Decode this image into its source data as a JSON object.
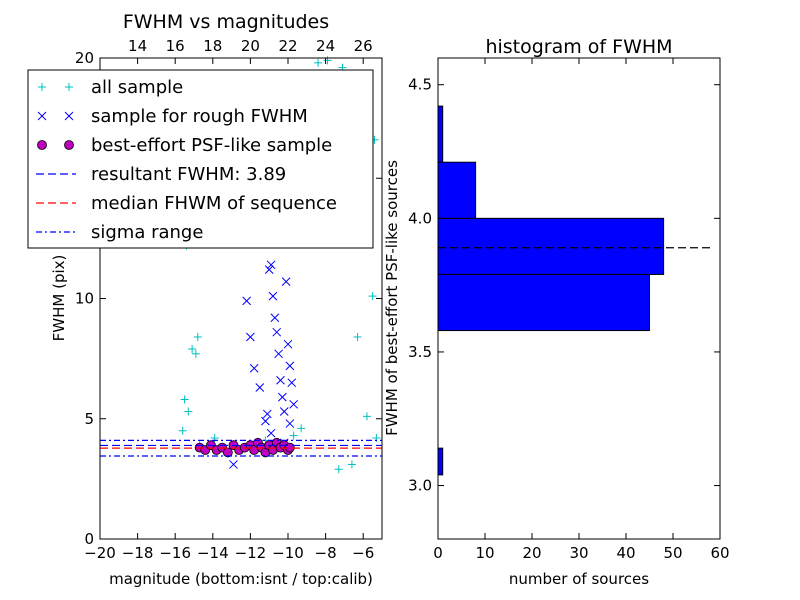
{
  "chart_data": [
    {
      "type": "scatter",
      "title": "FWHM vs magnitudes",
      "xlabel": "magnitude (bottom:isnt / top:calib)",
      "ylabel": "FWHM (pix)",
      "xlim": [
        -20,
        -5
      ],
      "ylim": [
        0,
        20
      ],
      "x_ticks": [
        -20,
        -18,
        -16,
        -14,
        -12,
        -10,
        -8,
        -6
      ],
      "x_tick_labels": [
        "−20",
        "−18",
        "−16",
        "−14",
        "−12",
        "−10",
        "−8",
        "−6"
      ],
      "y_ticks": [
        0,
        5,
        10,
        15,
        20
      ],
      "y_tick_labels": [
        "0",
        "5",
        "10",
        "15",
        "20"
      ],
      "top_axis": {
        "offset": 32,
        "ticks": [
          14,
          16,
          18,
          20,
          22,
          24,
          26
        ],
        "tick_labels": [
          "14",
          "16",
          "18",
          "20",
          "22",
          "24",
          "26"
        ]
      },
      "legend": {
        "placement": "upper-left",
        "entries": [
          {
            "label": "all sample",
            "marker": "+",
            "color": "#00bfbf"
          },
          {
            "label": "sample for rough FWHM",
            "marker": "x",
            "color": "#0000ff"
          },
          {
            "label": "best-effort PSF-like sample",
            "marker": "o",
            "color": "#bf00bf"
          },
          {
            "label": "resultant FWHM: 3.89",
            "line": "dashed",
            "color": "#0000ff"
          },
          {
            "label": "median FHWM of sequence",
            "line": "dashed",
            "color": "#ff0000"
          },
          {
            "label": "sigma range",
            "line": "dashdot",
            "color": "#0000ff"
          }
        ]
      },
      "series": [
        {
          "name": "all sample",
          "color": "#00bfbf",
          "points": [
            [
              -15.4,
              12.2
            ],
            [
              -15.5,
              5.8
            ],
            [
              -15.3,
              5.3
            ],
            [
              -15.1,
              7.9
            ],
            [
              -14.9,
              7.7
            ],
            [
              -14.8,
              8.4
            ],
            [
              -15.6,
              4.5
            ],
            [
              -14.7,
              3.9
            ],
            [
              -13.9,
              4.2
            ],
            [
              -12.5,
              3.7
            ],
            [
              -11.2,
              4.1
            ],
            [
              -10.5,
              3.8
            ],
            [
              -9.7,
              4.3
            ],
            [
              -9.3,
              4.6
            ],
            [
              -8.4,
              19.8
            ],
            [
              -7.9,
              19.9
            ],
            [
              -7.1,
              19.6
            ],
            [
              -5.4,
              16.6
            ],
            [
              -5.5,
              10.1
            ],
            [
              -6.1,
              15.8
            ],
            [
              -9.6,
              14.6
            ],
            [
              -9.2,
              13.4
            ],
            [
              -6.3,
              8.4
            ],
            [
              -5.8,
              5.1
            ],
            [
              -5.3,
              4.2
            ],
            [
              -6.6,
              3.1
            ],
            [
              -7.3,
              2.9
            ]
          ]
        },
        {
          "name": "sample for rough FWHM",
          "color": "#0000ff",
          "points": [
            [
              -12.2,
              9.9
            ],
            [
              -12.0,
              8.4
            ],
            [
              -11.8,
              7.1
            ],
            [
              -11.5,
              6.3
            ],
            [
              -11.2,
              4.9
            ],
            [
              -11.0,
              11.2
            ],
            [
              -10.9,
              11.4
            ],
            [
              -10.8,
              10.1
            ],
            [
              -10.7,
              9.2
            ],
            [
              -10.6,
              8.6
            ],
            [
              -10.5,
              7.7
            ],
            [
              -10.4,
              6.6
            ],
            [
              -10.3,
              5.9
            ],
            [
              -10.2,
              5.3
            ],
            [
              -10.1,
              10.7
            ],
            [
              -10.0,
              8.1
            ],
            [
              -9.9,
              7.2
            ],
            [
              -9.8,
              6.5
            ],
            [
              -9.7,
              5.6
            ],
            [
              -11.1,
              5.2
            ],
            [
              -12.9,
              3.1
            ],
            [
              -10.9,
              4.4
            ],
            [
              -10.2,
              4.0
            ],
            [
              -9.9,
              4.8
            ]
          ]
        },
        {
          "name": "best-effort PSF-like sample",
          "color": "#bf00bf",
          "points": [
            [
              -14.7,
              3.8
            ],
            [
              -14.4,
              3.7
            ],
            [
              -14.1,
              3.9
            ],
            [
              -13.8,
              3.7
            ],
            [
              -13.5,
              3.8
            ],
            [
              -13.2,
              3.6
            ],
            [
              -12.9,
              3.9
            ],
            [
              -12.6,
              3.7
            ],
            [
              -12.3,
              3.8
            ],
            [
              -12.0,
              3.9
            ],
            [
              -11.8,
              3.7
            ],
            [
              -11.6,
              4.0
            ],
            [
              -11.4,
              3.8
            ],
            [
              -11.2,
              3.6
            ],
            [
              -11.0,
              3.9
            ],
            [
              -10.8,
              3.7
            ],
            [
              -10.6,
              4.0
            ],
            [
              -10.4,
              3.8
            ],
            [
              -10.2,
              3.9
            ],
            [
              -10.0,
              3.7
            ],
            [
              -9.9,
              3.8
            ]
          ]
        }
      ],
      "hlines": [
        {
          "name": "resultant FWHM: 3.89",
          "y": 3.89,
          "style": "dashed",
          "color": "#0000ff"
        },
        {
          "name": "median FHWM of sequence",
          "y": 3.78,
          "style": "dashed",
          "color": "#ff0000"
        },
        {
          "name": "sigma range",
          "y": 4.1,
          "style": "dashdot",
          "color": "#0000ff"
        },
        {
          "name": "sigma range",
          "y": 3.45,
          "style": "dashdot",
          "color": "#0000ff"
        }
      ]
    },
    {
      "type": "bar",
      "orientation": "horizontal",
      "title": "histogram of FWHM",
      "xlabel": "number of sources",
      "ylabel": "FWHM of best-effort PSF-like sources",
      "xlim": [
        0,
        60
      ],
      "ylim": [
        2.8,
        4.6
      ],
      "x_ticks": [
        0,
        10,
        20,
        30,
        40,
        50,
        60
      ],
      "x_tick_labels": [
        "0",
        "10",
        "20",
        "30",
        "40",
        "50",
        "60"
      ],
      "y_ticks": [
        3.0,
        3.5,
        4.0,
        4.5
      ],
      "y_tick_labels": [
        "3.0",
        "3.5",
        "4.0",
        "4.5"
      ],
      "color": "#0000ff",
      "bins": [
        {
          "low": 3.04,
          "high": 3.14,
          "count": 1
        },
        {
          "low": 3.58,
          "high": 3.79,
          "count": 45
        },
        {
          "low": 3.79,
          "high": 4.0,
          "count": 48
        },
        {
          "low": 4.0,
          "high": 4.21,
          "count": 8
        },
        {
          "low": 4.21,
          "high": 4.42,
          "count": 1
        }
      ],
      "hline": {
        "y": 3.89,
        "style": "dashed",
        "color": "#000000"
      }
    }
  ]
}
